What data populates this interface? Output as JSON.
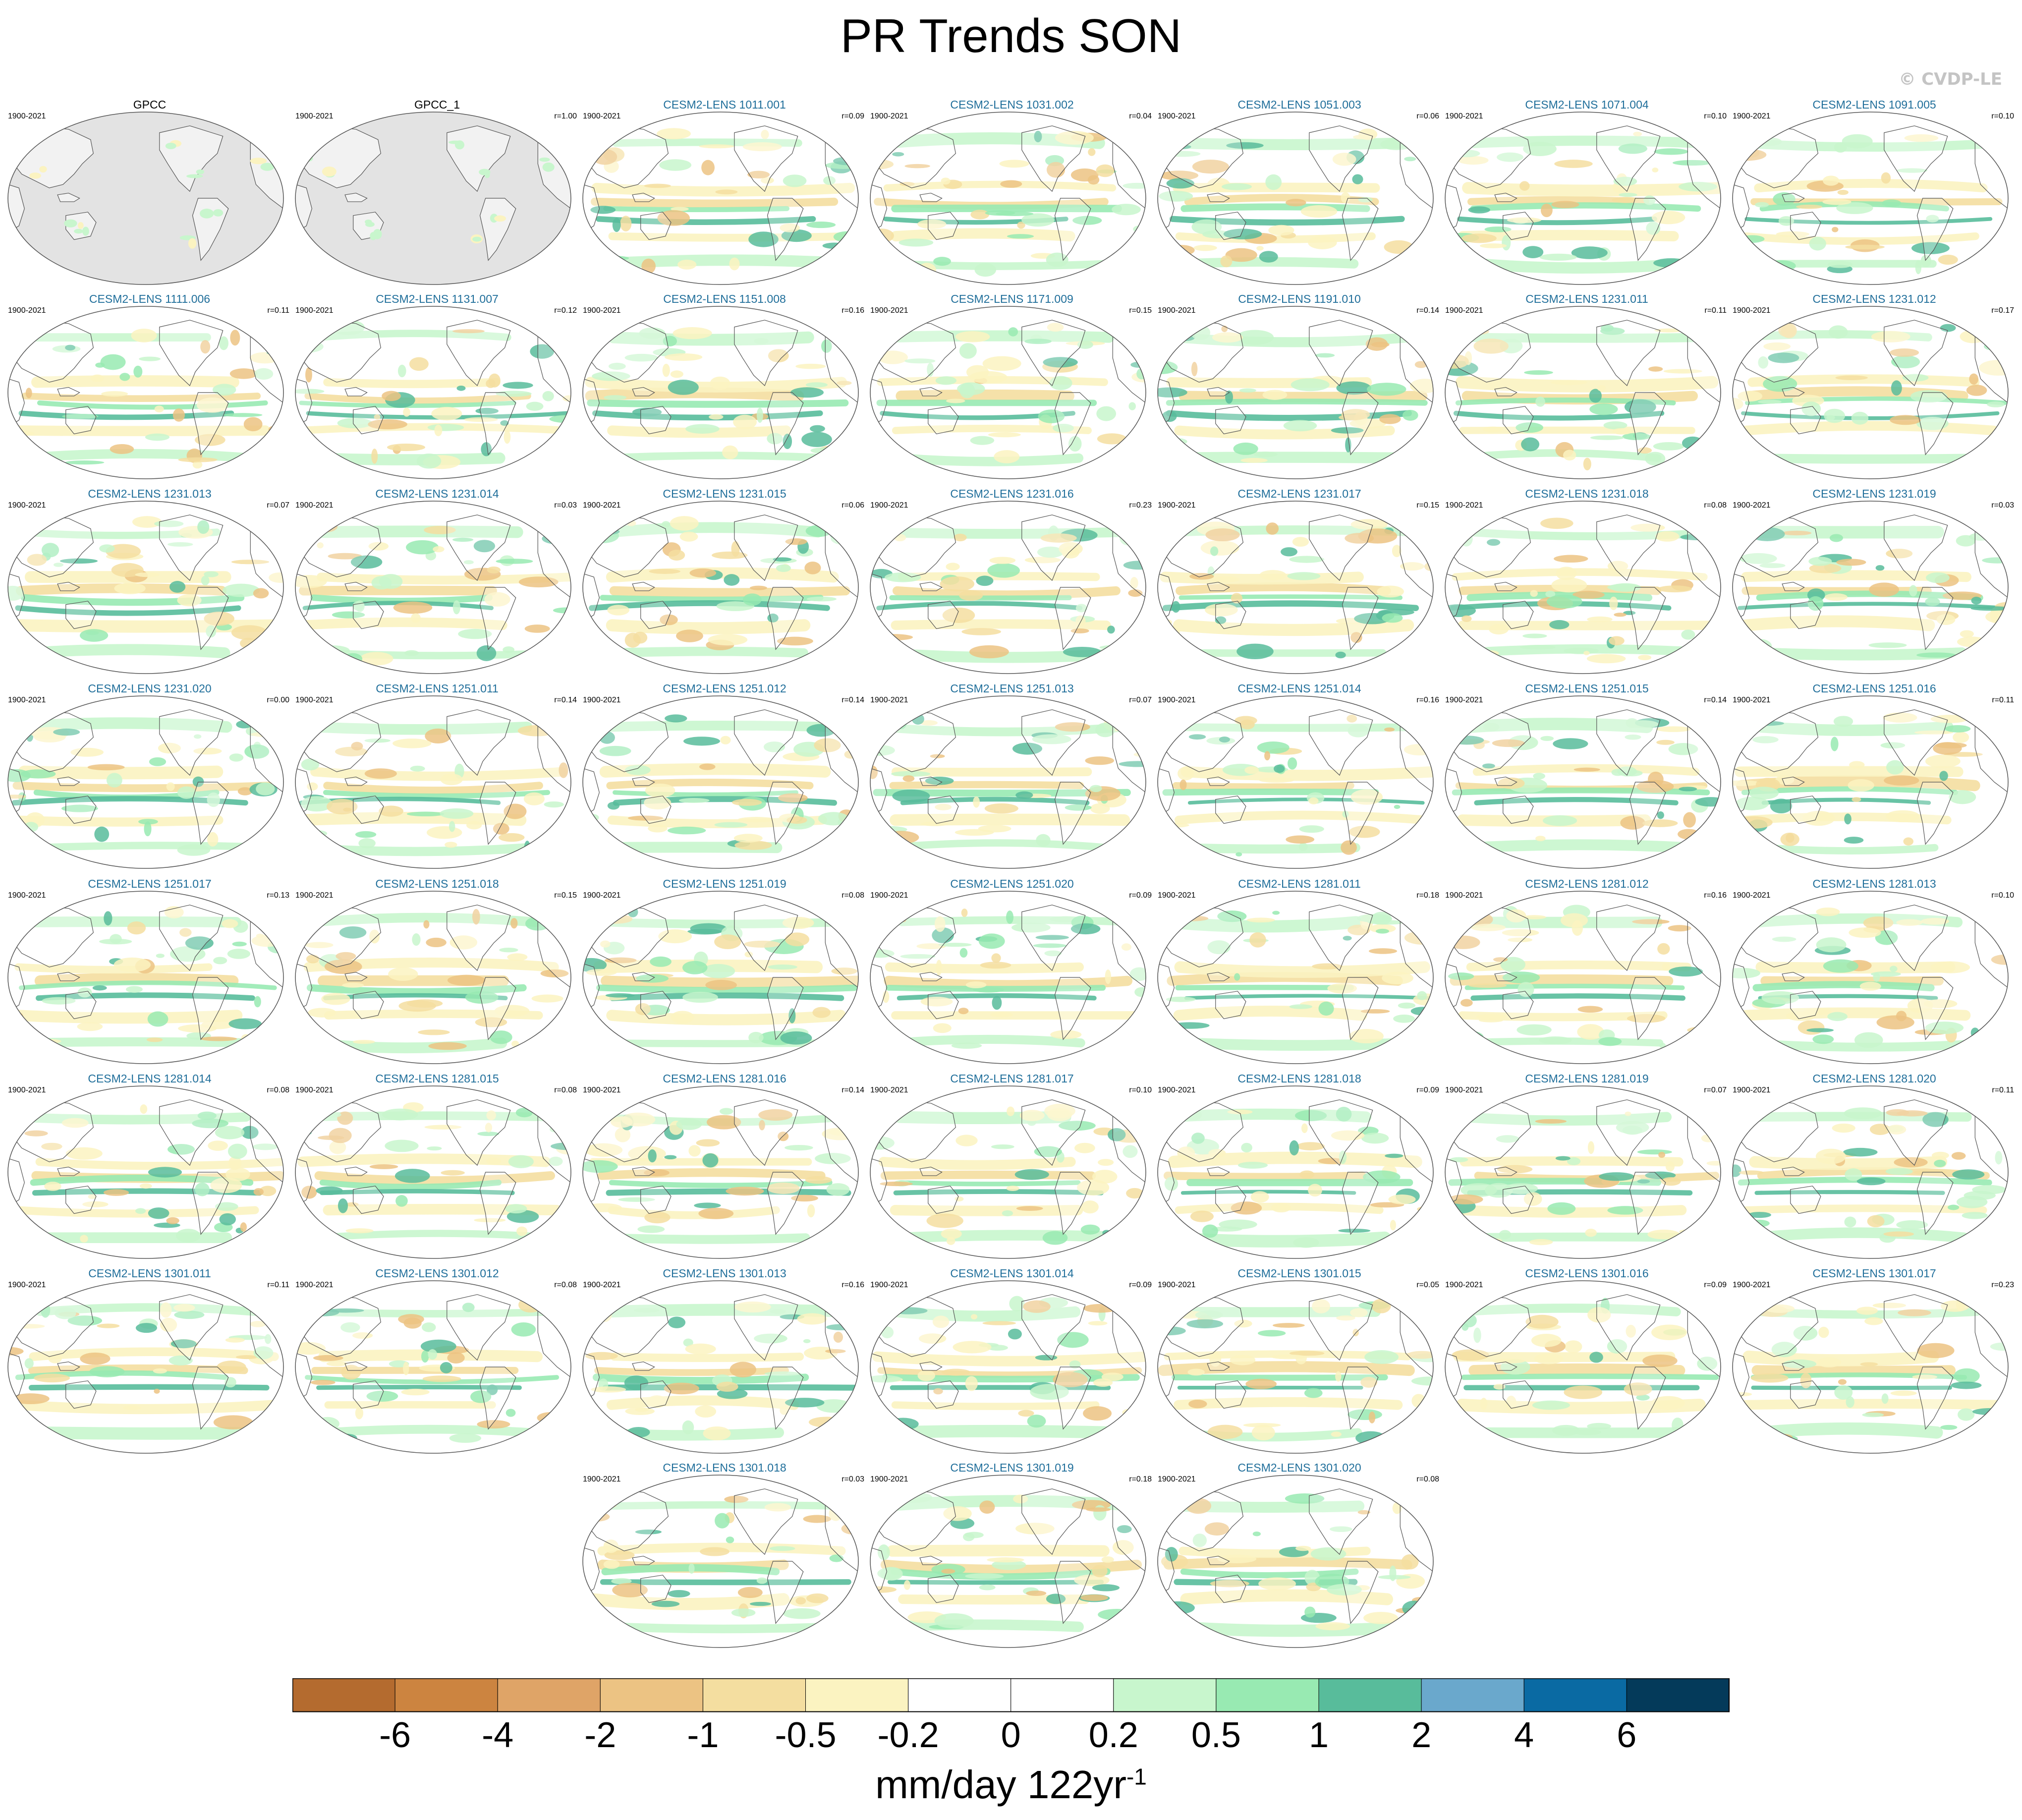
{
  "title": "PR Trends SON",
  "credit": "© CVDP-LE",
  "period": "1900-2021",
  "panels": [
    {
      "label": "GPCC",
      "r": "",
      "obs": true
    },
    {
      "label": "GPCC_1",
      "r": "r=1.00",
      "obs": true
    },
    {
      "label": "CESM2-LENS 1011.001",
      "r": "r=0.09"
    },
    {
      "label": "CESM2-LENS 1031.002",
      "r": "r=0.04"
    },
    {
      "label": "CESM2-LENS 1051.003",
      "r": "r=0.06"
    },
    {
      "label": "CESM2-LENS 1071.004",
      "r": "r=0.10"
    },
    {
      "label": "CESM2-LENS 1091.005",
      "r": "r=0.10"
    },
    {
      "label": "CESM2-LENS 1111.006",
      "r": "r=0.11"
    },
    {
      "label": "CESM2-LENS 1131.007",
      "r": "r=0.12"
    },
    {
      "label": "CESM2-LENS 1151.008",
      "r": "r=0.16"
    },
    {
      "label": "CESM2-LENS 1171.009",
      "r": "r=0.15"
    },
    {
      "label": "CESM2-LENS 1191.010",
      "r": "r=0.14"
    },
    {
      "label": "CESM2-LENS 1231.011",
      "r": "r=0.11"
    },
    {
      "label": "CESM2-LENS 1231.012",
      "r": "r=0.17"
    },
    {
      "label": "CESM2-LENS 1231.013",
      "r": "r=0.07"
    },
    {
      "label": "CESM2-LENS 1231.014",
      "r": "r=0.03"
    },
    {
      "label": "CESM2-LENS 1231.015",
      "r": "r=0.06"
    },
    {
      "label": "CESM2-LENS 1231.016",
      "r": "r=0.23"
    },
    {
      "label": "CESM2-LENS 1231.017",
      "r": "r=0.15"
    },
    {
      "label": "CESM2-LENS 1231.018",
      "r": "r=0.08"
    },
    {
      "label": "CESM2-LENS 1231.019",
      "r": "r=0.03"
    },
    {
      "label": "CESM2-LENS 1231.020",
      "r": "r=0.00"
    },
    {
      "label": "CESM2-LENS 1251.011",
      "r": "r=0.14"
    },
    {
      "label": "CESM2-LENS 1251.012",
      "r": "r=0.14"
    },
    {
      "label": "CESM2-LENS 1251.013",
      "r": "r=0.07"
    },
    {
      "label": "CESM2-LENS 1251.014",
      "r": "r=0.16"
    },
    {
      "label": "CESM2-LENS 1251.015",
      "r": "r=0.14"
    },
    {
      "label": "CESM2-LENS 1251.016",
      "r": "r=0.11"
    },
    {
      "label": "CESM2-LENS 1251.017",
      "r": "r=0.13"
    },
    {
      "label": "CESM2-LENS 1251.018",
      "r": "r=0.15"
    },
    {
      "label": "CESM2-LENS 1251.019",
      "r": "r=0.08"
    },
    {
      "label": "CESM2-LENS 1251.020",
      "r": "r=0.09"
    },
    {
      "label": "CESM2-LENS 1281.011",
      "r": "r=0.18"
    },
    {
      "label": "CESM2-LENS 1281.012",
      "r": "r=0.16"
    },
    {
      "label": "CESM2-LENS 1281.013",
      "r": "r=0.10"
    },
    {
      "label": "CESM2-LENS 1281.014",
      "r": "r=0.08"
    },
    {
      "label": "CESM2-LENS 1281.015",
      "r": "r=0.08"
    },
    {
      "label": "CESM2-LENS 1281.016",
      "r": "r=0.14"
    },
    {
      "label": "CESM2-LENS 1281.017",
      "r": "r=0.10"
    },
    {
      "label": "CESM2-LENS 1281.018",
      "r": "r=0.09"
    },
    {
      "label": "CESM2-LENS 1281.019",
      "r": "r=0.07"
    },
    {
      "label": "CESM2-LENS 1281.020",
      "r": "r=0.11"
    },
    {
      "label": "CESM2-LENS 1301.011",
      "r": "r=0.11"
    },
    {
      "label": "CESM2-LENS 1301.012",
      "r": "r=0.08"
    },
    {
      "label": "CESM2-LENS 1301.013",
      "r": "r=0.16"
    },
    {
      "label": "CESM2-LENS 1301.014",
      "r": "r=0.09"
    },
    {
      "label": "CESM2-LENS 1301.015",
      "r": "r=0.05"
    },
    {
      "label": "CESM2-LENS 1301.016",
      "r": "r=0.09"
    },
    {
      "label": "CESM2-LENS 1301.017",
      "r": "r=0.23"
    },
    {
      "label": "CESM2-LENS 1301.018",
      "r": "r=0.03"
    },
    {
      "label": "CESM2-LENS 1301.019",
      "r": "r=0.18"
    },
    {
      "label": "CESM2-LENS 1301.020",
      "r": "r=0.08"
    }
  ],
  "colorbar": {
    "labels": [
      "-6",
      "-4",
      "-2",
      "-1",
      "-0.5",
      "-0.2",
      "0",
      "0.2",
      "0.5",
      "1",
      "2",
      "4",
      "6"
    ],
    "colors": [
      "#b46b2f",
      "#cc8440",
      "#dfa467",
      "#ecc383",
      "#f4dea0",
      "#fbf3c1",
      "#ffffff",
      "#ffffff",
      "#c8f6cd",
      "#98eab2",
      "#58bc9b",
      "#6aa8cc",
      "#0a6aa3",
      "#043a5a"
    ],
    "units": "mm/day 122yr",
    "units_exponent": "-1"
  },
  "map_colors": {
    "ocean_missing": "#e3e3e3",
    "wet_light": "#c8f6cd",
    "wet": "#98eab2",
    "wet_strong": "#58bc9b",
    "dry_light": "#fbf3c1",
    "dry": "#f4dea0",
    "dry_strong": "#ecc383",
    "coast": "#555555"
  }
}
